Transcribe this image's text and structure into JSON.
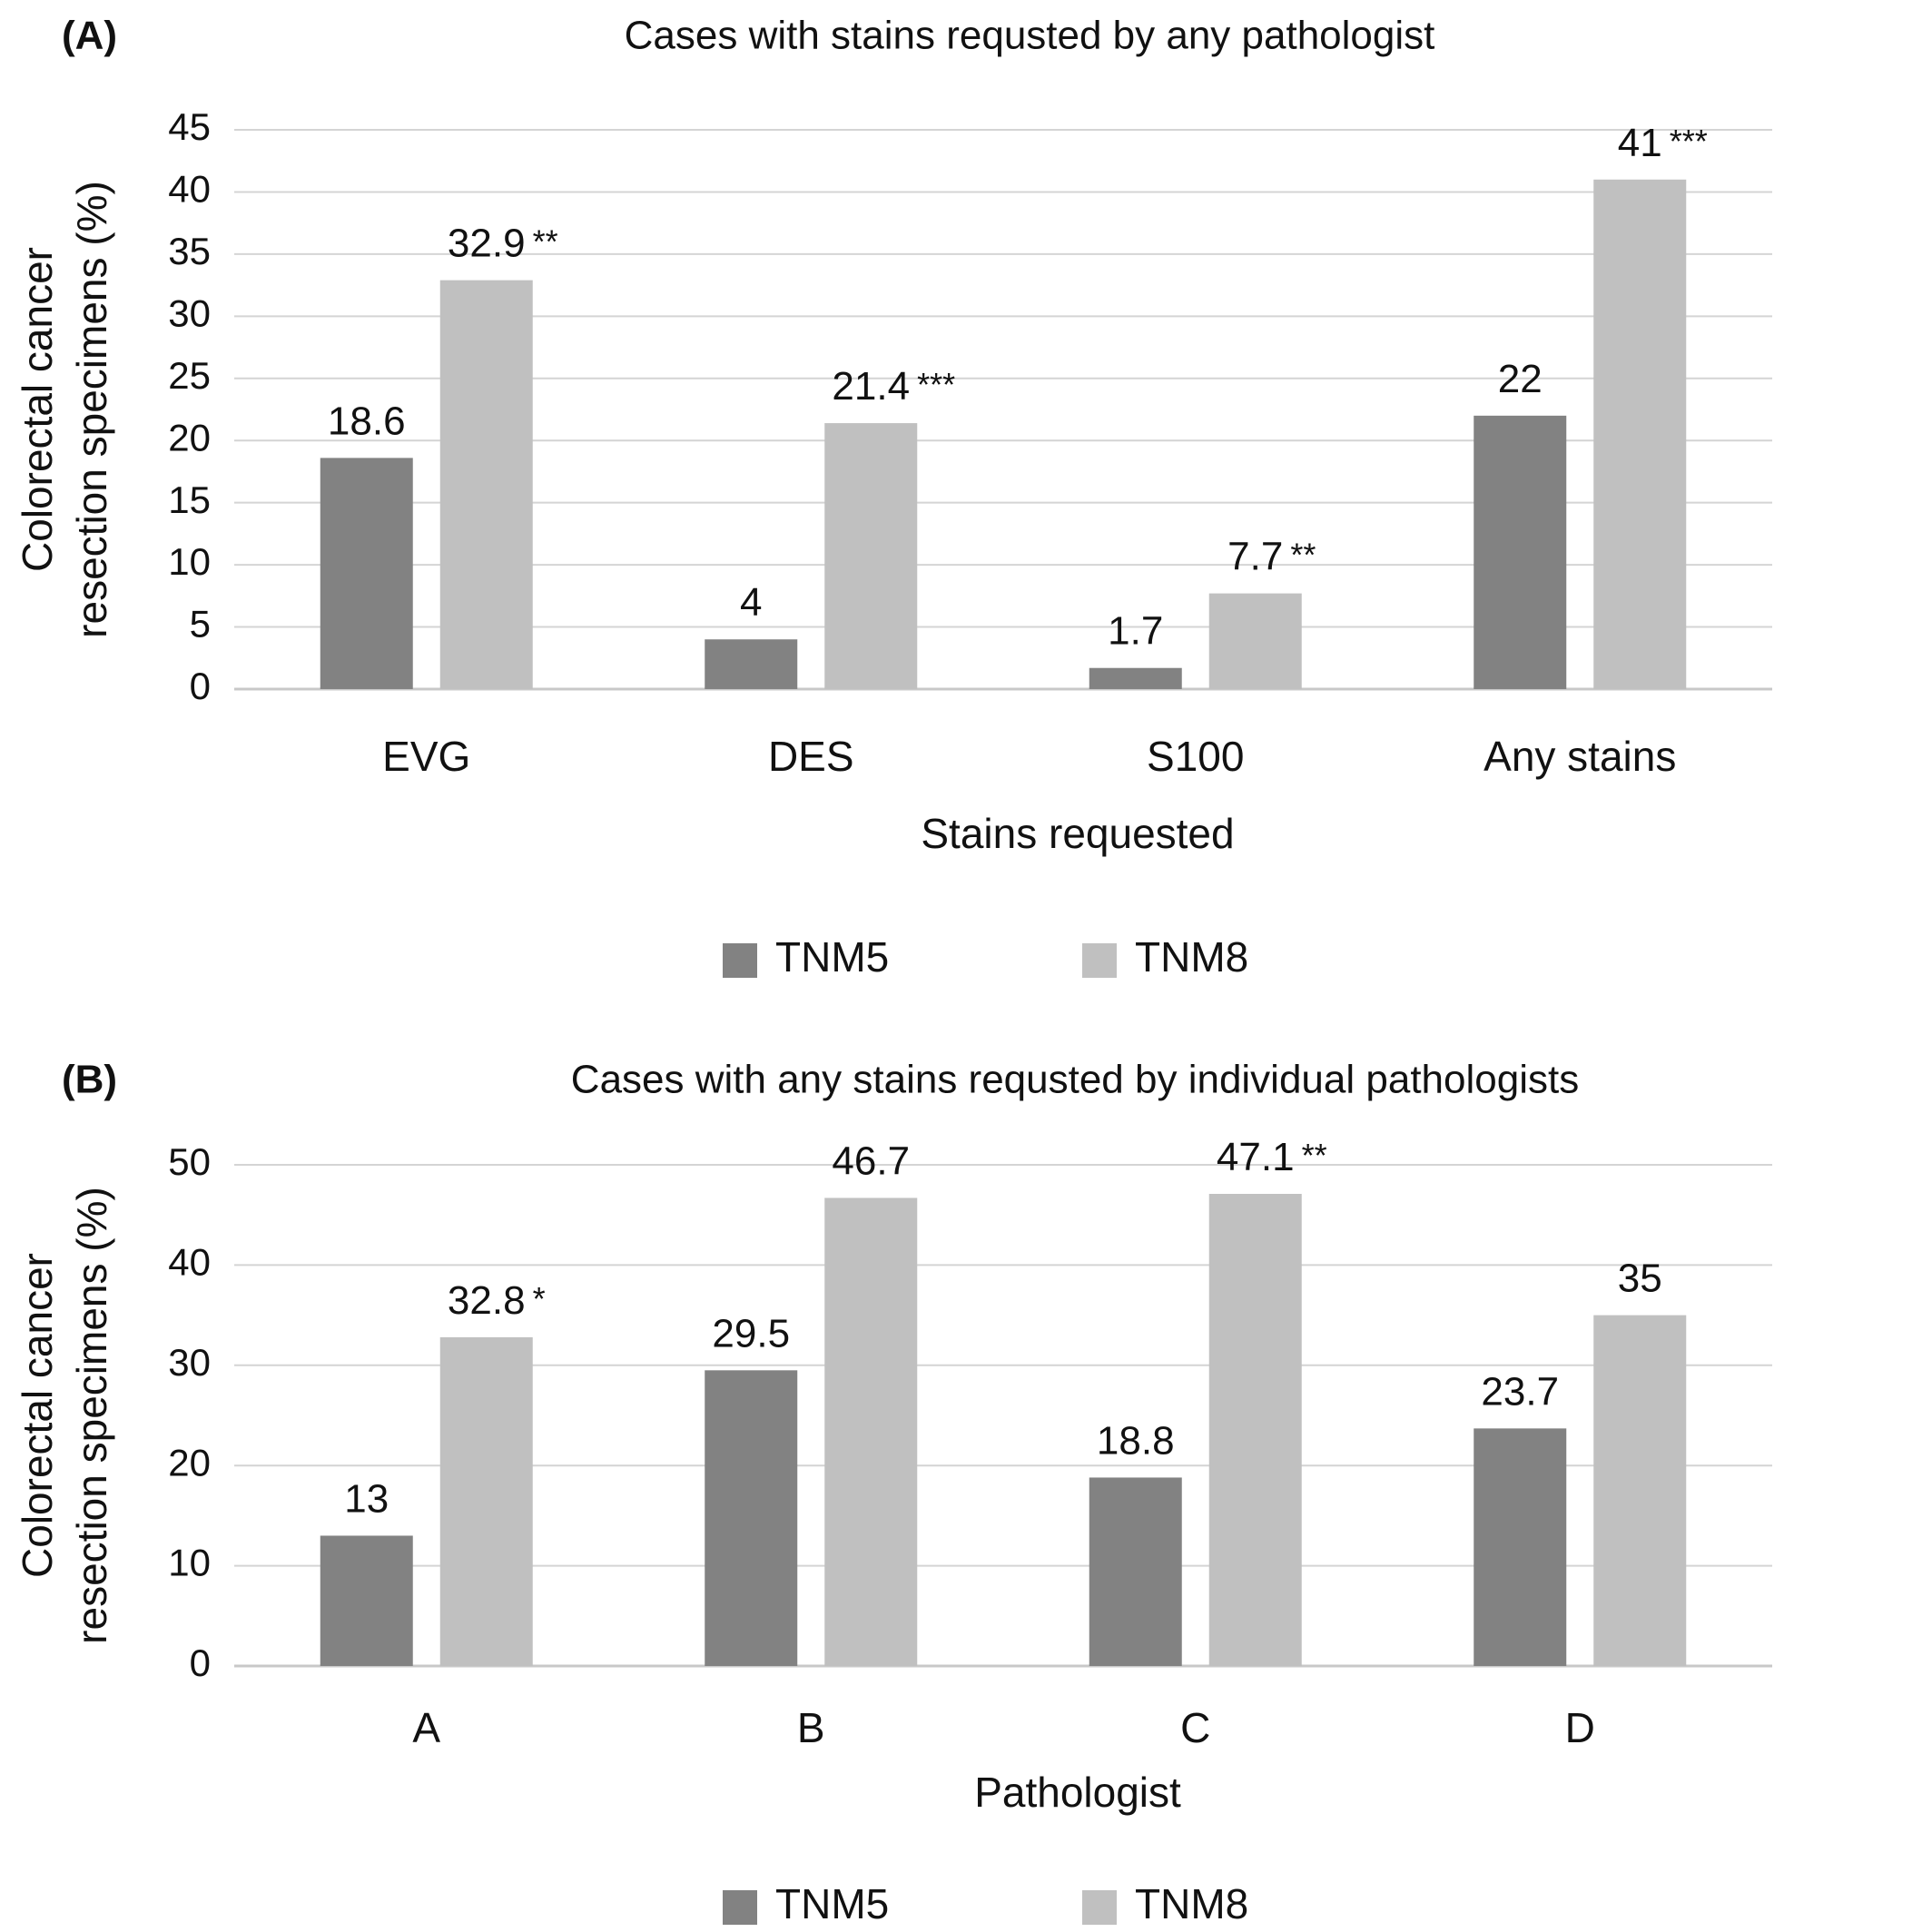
{
  "figure": {
    "colors": {
      "TNM5": "#828282",
      "TNM8": "#c0c0c0",
      "grid": "#d4d4d4"
    }
  },
  "chart_data": [
    {
      "type": "bar",
      "panel_label": "(A)",
      "title": "Cases with stains requsted by any pathologist",
      "xlabel": "Stains requested",
      "ylabel_lines": [
        "Colorectal cancer",
        "resection specimens (%)"
      ],
      "ylim": [
        0,
        45
      ],
      "yticks": [
        0,
        5,
        10,
        15,
        20,
        25,
        30,
        35,
        40,
        45
      ],
      "grid": true,
      "legend_position": "bottom-center",
      "categories": [
        "EVG",
        "DES",
        "S100",
        "Any stains"
      ],
      "series": [
        {
          "name": "TNM5",
          "values": [
            18.6,
            4,
            1.7,
            22
          ],
          "labels": [
            "18.6",
            "4",
            "1.7",
            "22"
          ]
        },
        {
          "name": "TNM8",
          "values": [
            32.9,
            21.4,
            7.7,
            41
          ],
          "labels": [
            "32.9",
            "21.4",
            "7.7",
            "41"
          ]
        }
      ],
      "annotations": [
        "**",
        "***",
        "**",
        "***"
      ]
    },
    {
      "type": "bar",
      "panel_label": "(B)",
      "title": "Cases with any stains requsted by individual pathologists",
      "xlabel": "Pathologist",
      "ylabel_lines": [
        "Colorectal cancer",
        "resection specimens (%)"
      ],
      "ylim": [
        0,
        50
      ],
      "yticks": [
        0,
        10,
        20,
        30,
        40,
        50
      ],
      "grid": true,
      "legend_position": "bottom-center",
      "categories": [
        "A",
        "B",
        "C",
        "D"
      ],
      "series": [
        {
          "name": "TNM5",
          "values": [
            13,
            29.5,
            18.8,
            23.7
          ],
          "labels": [
            "13",
            "29.5",
            "18.8",
            "23.7"
          ]
        },
        {
          "name": "TNM8",
          "values": [
            32.8,
            46.7,
            47.1,
            35
          ],
          "labels": [
            "32.8",
            "46.7",
            "47.1",
            "35"
          ]
        }
      ],
      "annotations": [
        "*",
        "",
        "**",
        ""
      ]
    }
  ]
}
